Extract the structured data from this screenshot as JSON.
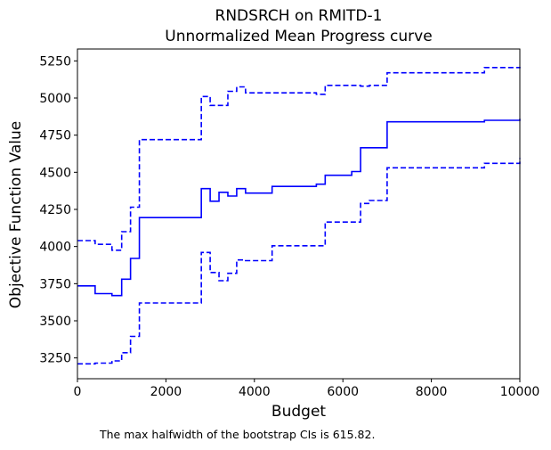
{
  "chart_data": {
    "type": "line",
    "title": "RNDSRCH on RMITD-1",
    "subtitle": "Unnormalized Mean Progress curve",
    "xlabel": "Budget",
    "ylabel": "Objective Function Value",
    "xlim": [
      0,
      10000
    ],
    "ylim": [
      3110,
      5330
    ],
    "x_ticks": [
      0,
      2000,
      4000,
      6000,
      8000,
      10000
    ],
    "y_ticks": [
      3250,
      3500,
      3750,
      4000,
      4250,
      4500,
      4750,
      5000,
      5250
    ],
    "grid": false,
    "step": "post",
    "color": "#0000ff",
    "series": [
      {
        "style": "solid",
        "points": [
          [
            0,
            3735
          ],
          [
            400,
            3683
          ],
          [
            780,
            3670
          ],
          [
            1000,
            3780
          ],
          [
            1200,
            3920
          ],
          [
            1400,
            4195
          ],
          [
            2800,
            4390
          ],
          [
            3000,
            4305
          ],
          [
            3200,
            4365
          ],
          [
            3400,
            4340
          ],
          [
            3600,
            4390
          ],
          [
            3800,
            4360
          ],
          [
            4400,
            4405
          ],
          [
            5400,
            4420
          ],
          [
            5600,
            4480
          ],
          [
            6200,
            4505
          ],
          [
            6400,
            4665
          ],
          [
            7000,
            4840
          ],
          [
            9200,
            4850
          ],
          [
            10000,
            4860
          ]
        ]
      },
      {
        "style": "dashed",
        "points": [
          [
            0,
            4040
          ],
          [
            400,
            4015
          ],
          [
            780,
            3975
          ],
          [
            1000,
            4100
          ],
          [
            1200,
            4265
          ],
          [
            1400,
            4720
          ],
          [
            2800,
            5010
          ],
          [
            3000,
            4950
          ],
          [
            3400,
            5045
          ],
          [
            3600,
            5075
          ],
          [
            3800,
            5035
          ],
          [
            5400,
            5025
          ],
          [
            5600,
            5085
          ],
          [
            6400,
            5080
          ],
          [
            6600,
            5085
          ],
          [
            7000,
            5170
          ],
          [
            9200,
            5205
          ],
          [
            10000,
            5210
          ]
        ]
      },
      {
        "style": "dashed",
        "points": [
          [
            0,
            3210
          ],
          [
            400,
            3215
          ],
          [
            780,
            3230
          ],
          [
            1000,
            3285
          ],
          [
            1200,
            3395
          ],
          [
            1400,
            3620
          ],
          [
            2800,
            3960
          ],
          [
            3000,
            3825
          ],
          [
            3200,
            3770
          ],
          [
            3400,
            3820
          ],
          [
            3600,
            3910
          ],
          [
            3800,
            3905
          ],
          [
            4400,
            4005
          ],
          [
            5600,
            4165
          ],
          [
            6400,
            4290
          ],
          [
            6600,
            4310
          ],
          [
            7000,
            4530
          ],
          [
            9200,
            4560
          ],
          [
            10000,
            4595
          ]
        ]
      }
    ],
    "annotation": "The max halfwidth of the bootstrap CIs is 615.82."
  }
}
